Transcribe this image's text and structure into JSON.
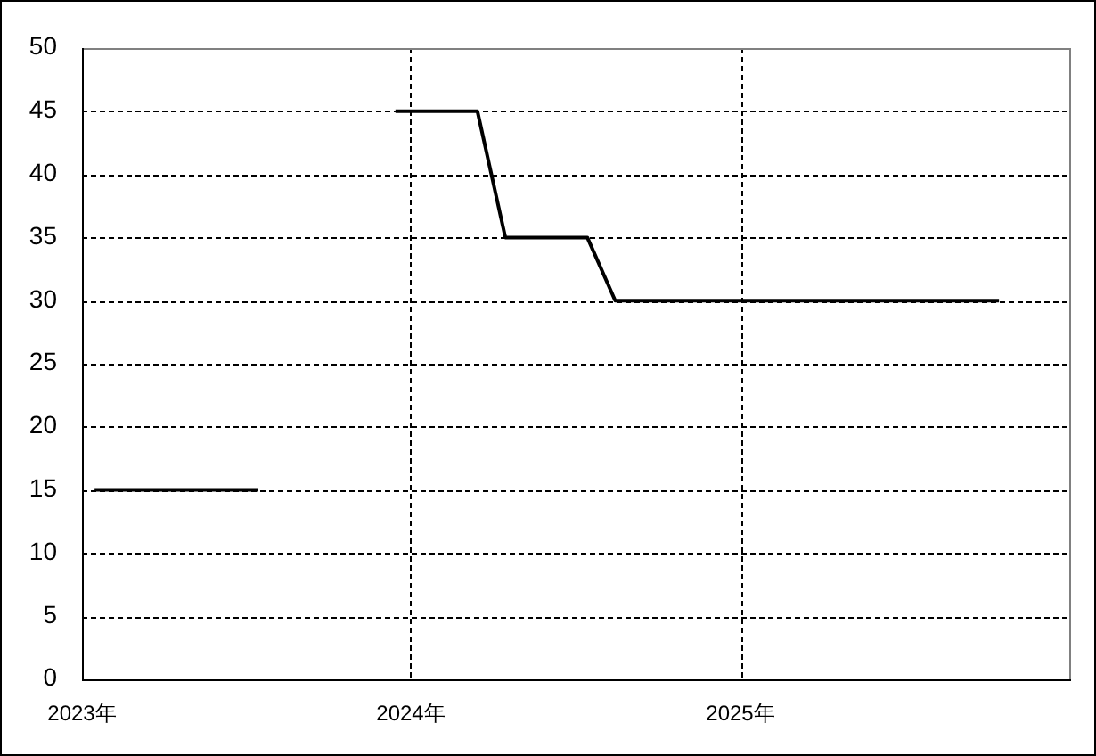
{
  "chart_data": {
    "type": "line",
    "series": [
      {
        "color": "#000000",
        "x": [
          "2023-01-15",
          "2023-02-15",
          "2023-03-15",
          "2023-04-15",
          "2023-05-15",
          "2023-06-15",
          "2023-07-15"
        ],
        "values": [
          15,
          15,
          15,
          15,
          15,
          15,
          15
        ]
      },
      {
        "color": "#000000",
        "x": [
          "2023-12-15",
          "2024-01-15",
          "2024-02-15",
          "2024-03-15",
          "2024-04-15",
          "2024-05-15",
          "2024-06-15",
          "2024-07-15",
          "2024-08-15",
          "2024-09-15",
          "2024-10-15",
          "2024-11-15",
          "2024-12-15",
          "2025-01-15",
          "2025-02-15",
          "2025-03-15",
          "2025-04-15",
          "2025-05-15",
          "2025-06-15",
          "2025-07-15",
          "2025-08-15",
          "2025-09-15",
          "2025-10-15"
        ],
        "values": [
          45,
          45,
          45,
          45,
          35,
          35,
          35,
          35,
          30,
          30,
          30,
          30,
          30,
          30,
          30,
          30,
          30,
          30,
          30,
          30,
          30,
          30,
          30
        ]
      }
    ],
    "xlim": [
      "2023-01-01",
      "2026-01-01"
    ],
    "xticks": [
      {
        "value": "2023-01-01",
        "label": "2023年"
      },
      {
        "value": "2024-01-01",
        "label": "2024年"
      },
      {
        "value": "2025-01-01",
        "label": "2025年"
      }
    ],
    "ylim": [
      0,
      50
    ],
    "yticks": [
      0,
      5,
      10,
      15,
      20,
      25,
      30,
      35,
      40,
      45,
      50
    ],
    "grid": true
  }
}
